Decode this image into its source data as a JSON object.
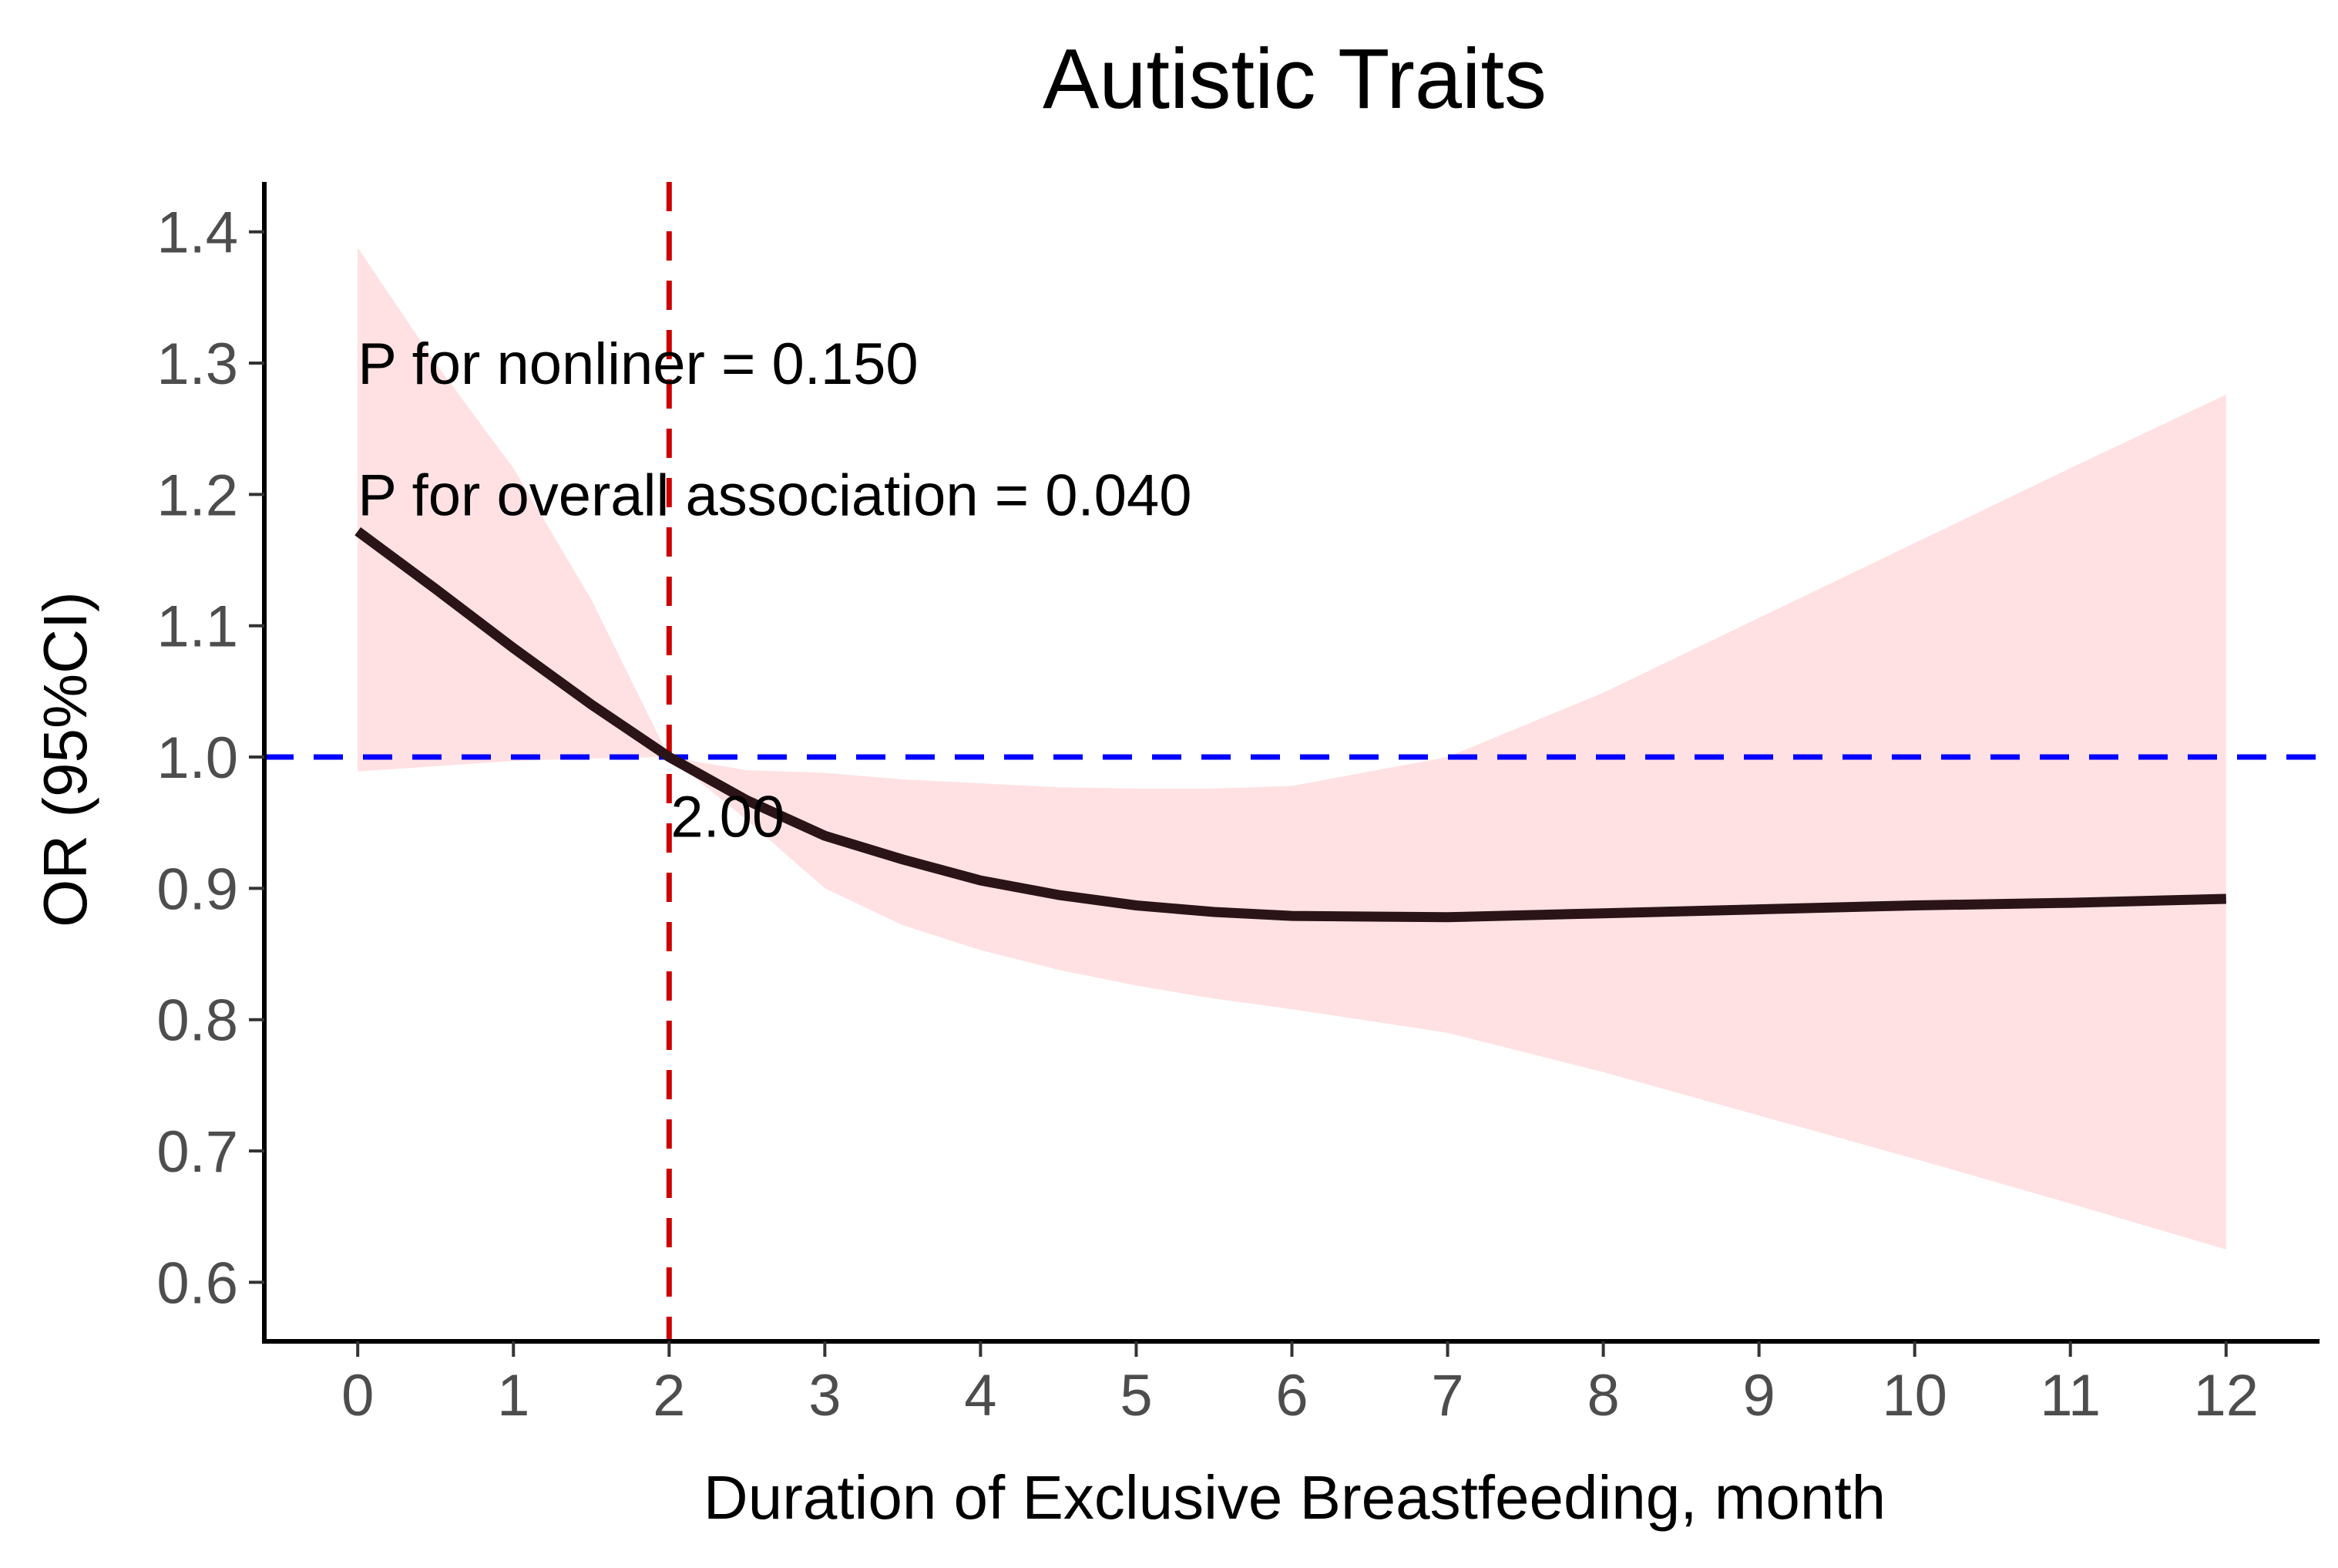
{
  "chart_data": {
    "type": "line",
    "title": "Autistic Traits",
    "xlabel": "Duration of Exclusive Breastfeeding, month",
    "ylabel": "OR (95%CI)",
    "xlim": [
      -0.6,
      12.6
    ],
    "ylim": [
      0.555,
      1.438
    ],
    "x_ticks": [
      0,
      1,
      2,
      3,
      4,
      5,
      6,
      7,
      8,
      9,
      10,
      11,
      12
    ],
    "y_ticks": [
      0.6,
      0.7,
      0.8,
      0.9,
      1.0,
      1.1,
      1.2,
      1.3,
      1.4
    ],
    "y_tick_labels": [
      "0.6",
      "0.7",
      "0.8",
      "0.9",
      "1.0",
      "1.1",
      "1.2",
      "1.3",
      "1.4"
    ],
    "grid": false,
    "series": [
      {
        "name": "OR",
        "color": "#2b1418",
        "x": [
          0,
          0.5,
          1,
          1.5,
          2,
          2.5,
          3,
          3.5,
          4,
          4.5,
          5,
          5.5,
          6,
          7,
          8,
          9,
          10,
          11,
          12
        ],
        "values": [
          1.172,
          1.128,
          1.083,
          1.04,
          1.0,
          0.967,
          0.94,
          0.922,
          0.906,
          0.895,
          0.887,
          0.882,
          0.879,
          0.878,
          0.881,
          0.884,
          0.887,
          0.889,
          0.892
        ]
      }
    ],
    "confidence_band": {
      "name": "95% CI",
      "color": "#ffe1e3",
      "x": [
        0,
        0.5,
        1,
        1.5,
        2,
        2.5,
        3,
        3.5,
        4,
        4.5,
        5,
        5.5,
        6,
        7,
        8,
        9,
        10,
        11,
        12
      ],
      "lower": [
        0.989,
        0.993,
        0.997,
        0.999,
        1.0,
        0.952,
        0.9,
        0.872,
        0.853,
        0.838,
        0.826,
        0.816,
        0.808,
        0.79,
        0.76,
        0.727,
        0.694,
        0.66,
        0.625
      ],
      "upper": [
        1.388,
        1.3,
        1.22,
        1.12,
        1.0,
        0.99,
        0.988,
        0.983,
        0.98,
        0.977,
        0.976,
        0.976,
        0.978,
        1.0,
        1.049,
        1.106,
        1.163,
        1.22,
        1.276
      ]
    },
    "reference_lines": [
      {
        "orientation": "horizontal",
        "value": 1.0,
        "color": "#0000ff",
        "style": "dashed"
      },
      {
        "orientation": "vertical",
        "value": 2.0,
        "color": "#cc0000",
        "style": "dashed"
      }
    ],
    "annotations": [
      {
        "text": "P for nonliner = 0.150",
        "x": 0,
        "y": 1.3
      },
      {
        "text": "P for overall association = 0.040",
        "x": 0,
        "y": 1.2
      },
      {
        "text": "2.00",
        "x": 2.0,
        "y": 0.955
      }
    ]
  }
}
